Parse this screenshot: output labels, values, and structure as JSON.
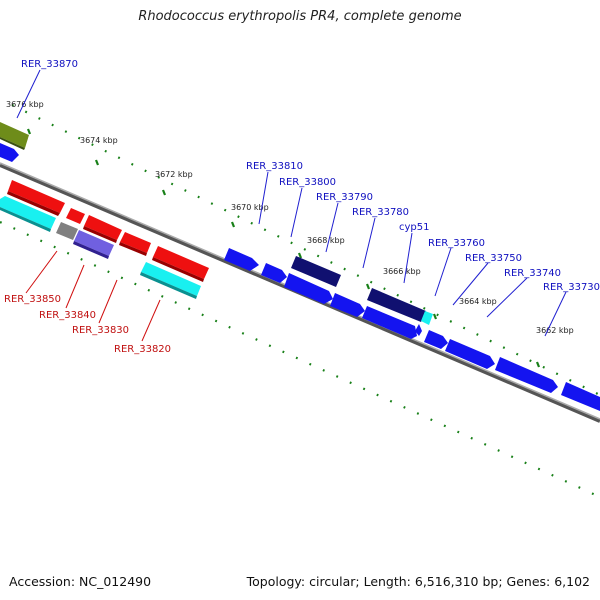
{
  "title": "Rhodococcus erythropolis PR4, complete genome",
  "footer": {
    "accession": "Accession: NC_012490",
    "topology": "Topology: circular; Length: 6,516,310 bp; Genes: 6,102"
  },
  "colors": {
    "forward_gene": "#1414f0",
    "dark_gene": "#101070",
    "reverse_gene": "#ee1010",
    "reverse_cyan": "#19f0f0",
    "olive_gene": "#6e8c1a",
    "purple_gene": "#7060e0",
    "gray_gene": "#808080",
    "backbone": "#888888",
    "tick": "#188018",
    "forward_label": "#1010c0",
    "reverse_label": "#c01010"
  },
  "ticks": [
    "3676 kbp",
    "3674 kbp",
    "3672 kbp",
    "3670 kbp",
    "3668 kbp",
    "3666 kbp",
    "3664 kbp",
    "3662 kbp"
  ],
  "forward_labels": [
    "RER_33870",
    "RER_33810",
    "RER_33800",
    "RER_33790",
    "RER_33780",
    "cyp51",
    "RER_33760",
    "RER_33750",
    "RER_33740",
    "RER_33730"
  ],
  "reverse_labels": [
    "RER_33850",
    "RER_33840",
    "RER_33830",
    "RER_33820"
  ]
}
